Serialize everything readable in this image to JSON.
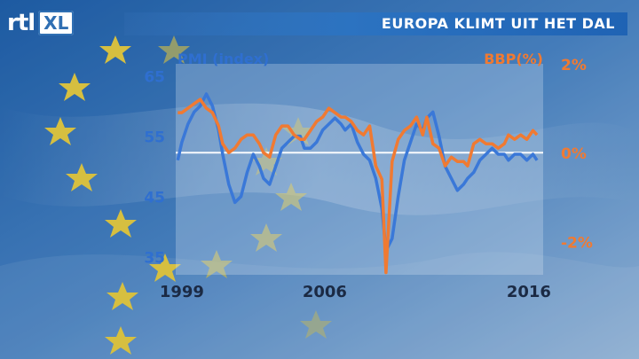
{
  "logo": {
    "rtl": "rtl",
    "xl": "XL"
  },
  "banner": {
    "title": "EUROPA KLIMT UIT HET DAL"
  },
  "colors": {
    "pmi": "#3a78d8",
    "bbp": "#f07a32",
    "axis_left": "#2f6fd0",
    "axis_right": "#f07a32"
  },
  "chart_data": {
    "type": "line",
    "left_label": "PMI (index)",
    "right_label": "BBP(%)",
    "left_ticks": [
      "65",
      "55",
      "45",
      "35"
    ],
    "left_tick_values": [
      65,
      55,
      45,
      35
    ],
    "right_ticks": [
      "2%",
      "0%",
      "-2%"
    ],
    "right_tick_values": [
      2,
      0,
      -2
    ],
    "x_ticks": [
      "1999",
      "2006",
      "2016"
    ],
    "x_tick_values": [
      1999,
      2006,
      2016
    ],
    "left_ylim": [
      32,
      67
    ],
    "right_ylim": [
      -2.75,
      2.0
    ],
    "xlim": [
      1998.7,
      2016.7
    ],
    "zero_line": 0,
    "series": [
      {
        "name": "PMI (index)",
        "axis": "left",
        "x": [
          1998.8,
          1999.0,
          1999.3,
          1999.6,
          1999.9,
          2000.2,
          2000.5,
          2000.8,
          2001.0,
          2001.3,
          2001.6,
          2001.9,
          2002.2,
          2002.5,
          2002.8,
          2003.0,
          2003.3,
          2003.6,
          2003.9,
          2004.2,
          2004.5,
          2004.8,
          2005.0,
          2005.3,
          2005.6,
          2005.9,
          2006.2,
          2006.5,
          2006.8,
          2007.0,
          2007.3,
          2007.6,
          2007.9,
          2008.2,
          2008.5,
          2008.8,
          2009.0,
          2009.3,
          2009.6,
          2009.9,
          2010.2,
          2010.5,
          2010.8,
          2011.0,
          2011.3,
          2011.6,
          2011.9,
          2012.2,
          2012.5,
          2012.8,
          2013.0,
          2013.3,
          2013.6,
          2013.9,
          2014.2,
          2014.5,
          2014.8,
          2015.0,
          2015.3,
          2015.6,
          2015.9,
          2016.2,
          2016.4
        ],
        "y": [
          51,
          54,
          57,
          59,
          60,
          62,
          60,
          56,
          52,
          47,
          44,
          45,
          49,
          52,
          50,
          48,
          47,
          50,
          53,
          54,
          55,
          55,
          53,
          53,
          54,
          56,
          57,
          58,
          57,
          56,
          57,
          54,
          52,
          51,
          48,
          43,
          36,
          38,
          45,
          51,
          54,
          57,
          56,
          58,
          59,
          55,
          50,
          48,
          46,
          47,
          48,
          49,
          51,
          52,
          53,
          52,
          52,
          51,
          52,
          52,
          51,
          52,
          51
        ]
      },
      {
        "name": "BBP(%)",
        "axis": "right",
        "x": [
          1998.8,
          1999.0,
          1999.3,
          1999.6,
          1999.9,
          2000.2,
          2000.5,
          2000.8,
          2001.0,
          2001.3,
          2001.6,
          2001.9,
          2002.2,
          2002.5,
          2002.8,
          2003.0,
          2003.3,
          2003.6,
          2003.9,
          2004.2,
          2004.5,
          2004.8,
          2005.0,
          2005.3,
          2005.6,
          2005.9,
          2006.2,
          2006.5,
          2006.8,
          2007.0,
          2007.3,
          2007.6,
          2007.9,
          2008.2,
          2008.5,
          2008.8,
          2009.0,
          2009.3,
          2009.6,
          2009.9,
          2010.2,
          2010.5,
          2010.8,
          2011.0,
          2011.3,
          2011.6,
          2011.9,
          2012.2,
          2012.5,
          2012.8,
          2013.0,
          2013.3,
          2013.6,
          2013.9,
          2014.2,
          2014.5,
          2014.8,
          2015.0,
          2015.3,
          2015.6,
          2015.9,
          2016.2,
          2016.4
        ],
        "y": [
          0.9,
          0.9,
          1.0,
          1.1,
          1.2,
          1.0,
          0.9,
          0.6,
          0.2,
          0.0,
          0.1,
          0.3,
          0.4,
          0.4,
          0.2,
          0.0,
          -0.1,
          0.4,
          0.6,
          0.6,
          0.4,
          0.3,
          0.3,
          0.5,
          0.7,
          0.8,
          1.0,
          0.9,
          0.8,
          0.8,
          0.7,
          0.5,
          0.4,
          0.6,
          -0.3,
          -0.6,
          -2.7,
          -0.2,
          0.3,
          0.5,
          0.6,
          0.8,
          0.4,
          0.8,
          0.2,
          0.1,
          -0.3,
          -0.1,
          -0.2,
          -0.2,
          -0.3,
          0.2,
          0.3,
          0.2,
          0.2,
          0.1,
          0.2,
          0.4,
          0.3,
          0.4,
          0.3,
          0.5,
          0.4
        ]
      }
    ]
  }
}
